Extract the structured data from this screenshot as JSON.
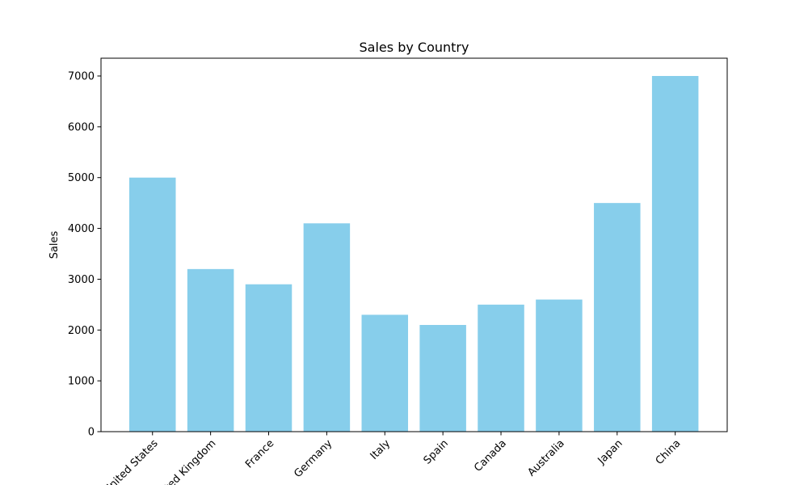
{
  "chart_data": {
    "type": "bar",
    "title": "Sales by Country",
    "xlabel": "",
    "ylabel": "Sales",
    "categories": [
      "United States",
      "United Kingdom",
      "France",
      "Germany",
      "Italy",
      "Spain",
      "Canada",
      "Australia",
      "Japan",
      "China"
    ],
    "values": [
      5000,
      3200,
      2900,
      4100,
      2300,
      2100,
      2500,
      2600,
      4500,
      7000
    ],
    "ylim": [
      0,
      7350
    ],
    "yticks": [
      0,
      1000,
      2000,
      3000,
      4000,
      5000,
      6000,
      7000
    ],
    "x_tick_rotation_deg": 45,
    "bar_color": "#87ceeb",
    "grid": false,
    "legend": "none"
  }
}
